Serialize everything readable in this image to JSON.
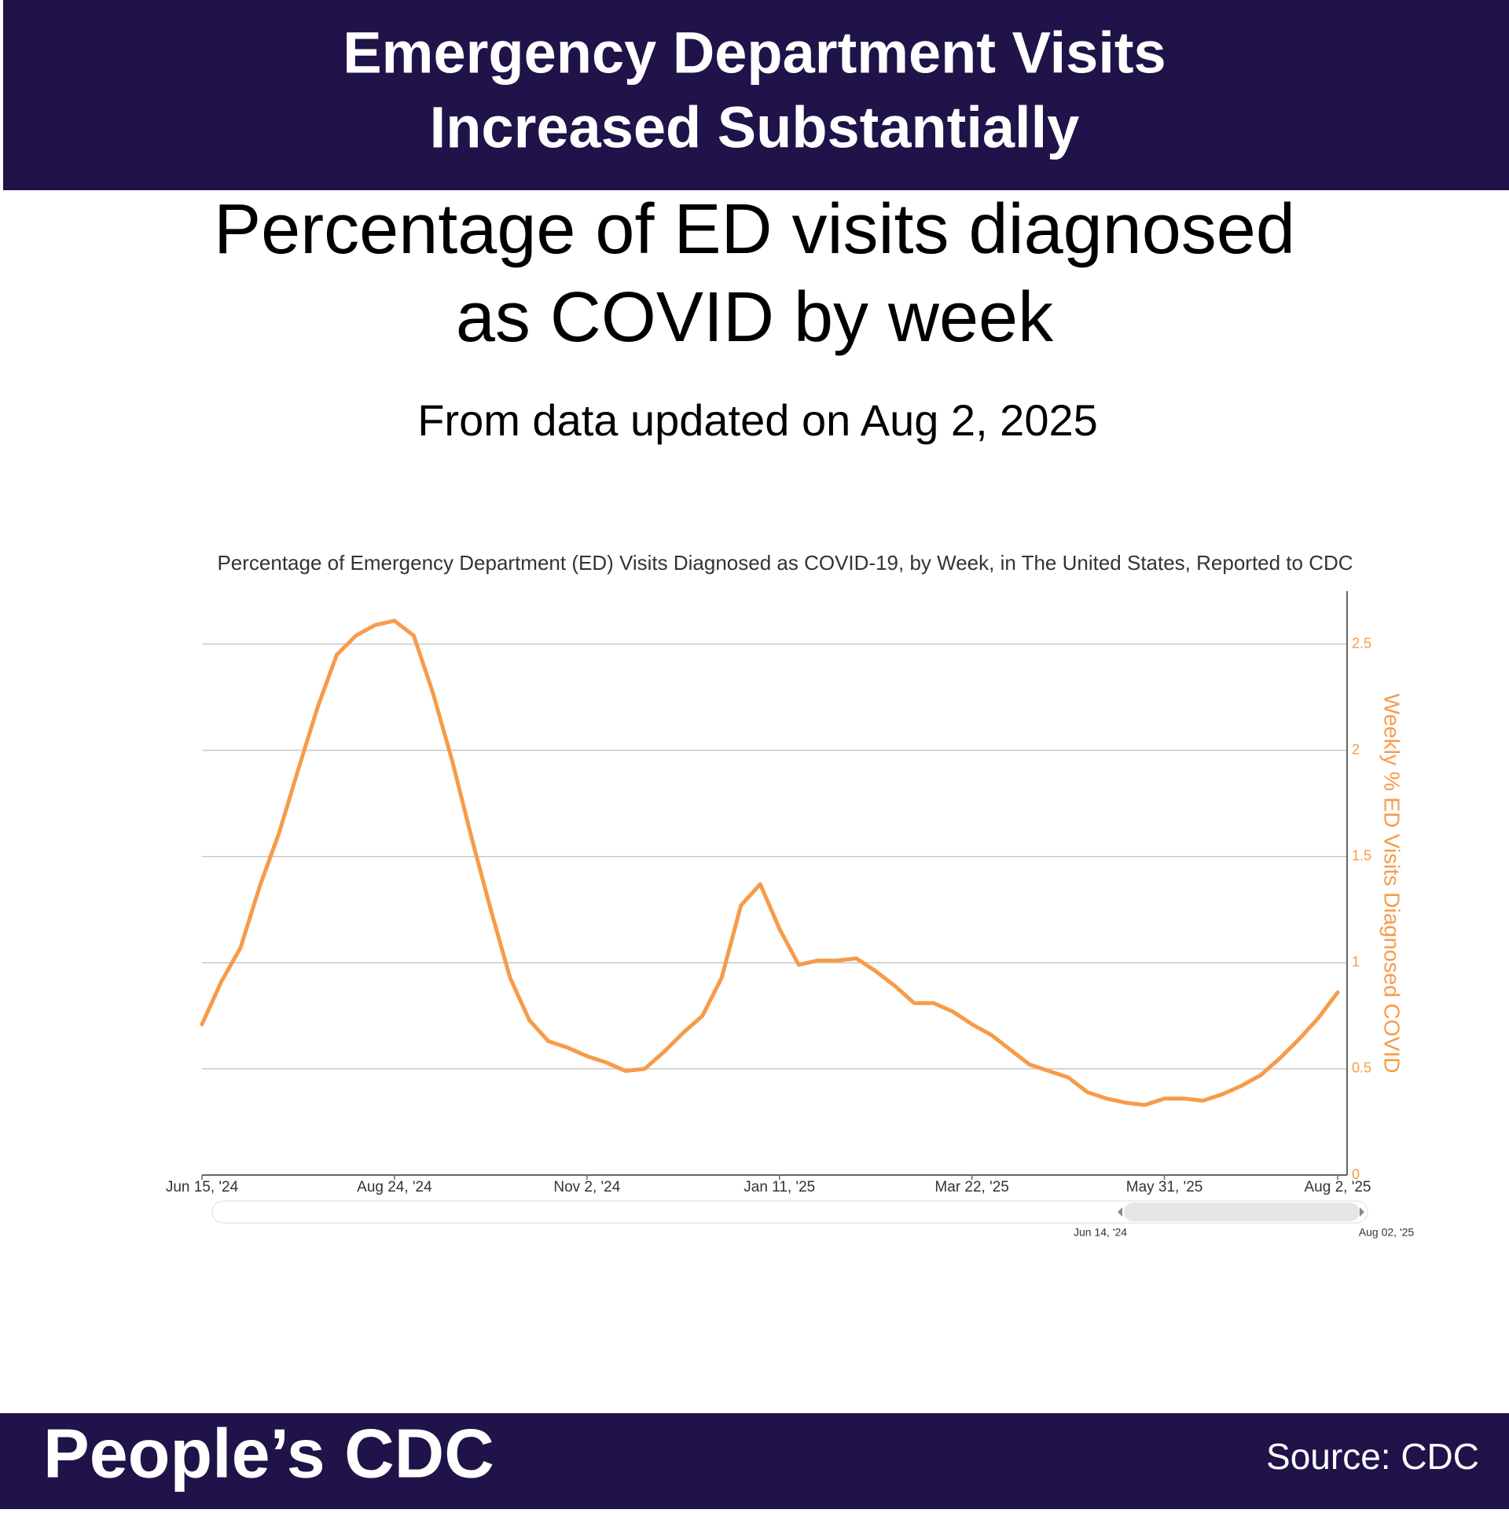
{
  "header": {
    "title_lines": [
      "Emergency Department Visits",
      "Increased Substantially"
    ]
  },
  "subtitle_lines": [
    "Percentage of ED visits diagnosed",
    "as COVID by week"
  ],
  "updated": "From data updated on Aug 2, 2025",
  "chart_data": {
    "type": "line",
    "title": "Percentage of Emergency Department (ED) Visits Diagnosed as COVID-19, by Week, in The United States, Reported to CDC",
    "y_label": "Weekly % ED Visits Diagnosed COVID",
    "categories": [
      "Jun 15, '24",
      null,
      null,
      null,
      null,
      null,
      null,
      null,
      null,
      null,
      "Aug 24, '24",
      null,
      null,
      null,
      null,
      null,
      null,
      null,
      null,
      null,
      "Nov 2, '24",
      null,
      null,
      null,
      null,
      null,
      null,
      null,
      null,
      null,
      "Jan 11, '25",
      null,
      null,
      null,
      null,
      null,
      null,
      null,
      null,
      null,
      "Mar 22, '25",
      null,
      null,
      null,
      null,
      null,
      null,
      null,
      null,
      null,
      "May 31, '25",
      null,
      null,
      null,
      null,
      null,
      null,
      null,
      null,
      "Aug 2, '25"
    ],
    "series": [
      {
        "name": "Weekly % ED Visits Diagnosed COVID",
        "color": "#f79b4a",
        "axis": "y2",
        "values": [
          0.71,
          0.91,
          1.07,
          1.36,
          1.61,
          1.91,
          2.2,
          2.45,
          2.54,
          2.59,
          2.61,
          2.54,
          2.27,
          1.95,
          1.59,
          1.25,
          0.93,
          0.73,
          0.63,
          0.6,
          0.56,
          0.53,
          0.49,
          0.5,
          0.58,
          0.67,
          0.75,
          0.93,
          1.27,
          1.37,
          1.16,
          0.99,
          1.01,
          1.01,
          1.02,
          0.96,
          0.89,
          0.81,
          0.81,
          0.77,
          0.71,
          0.66,
          0.59,
          0.52,
          0.49,
          0.46,
          0.39,
          0.36,
          0.34,
          0.33,
          0.36,
          0.36,
          0.35,
          0.38,
          0.42,
          0.47,
          0.55,
          0.64,
          0.74,
          0.86
        ]
      }
    ],
    "y2lim": [
      0,
      2.75
    ],
    "y2ticks": [
      0,
      0.5,
      1,
      1.5,
      2,
      2.5
    ],
    "grid": true,
    "navigator": {
      "start_label": "Jun 14, '24",
      "end_label": "Aug 02, '25"
    }
  },
  "footer": {
    "brand": "People’s CDC",
    "source": "Source: CDC"
  }
}
